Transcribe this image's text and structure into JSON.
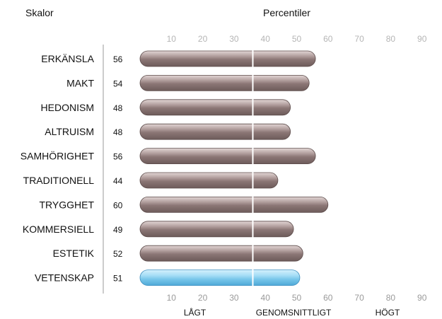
{
  "headers": {
    "scales": "Skalor",
    "percentiles": "Percentiler"
  },
  "chart_data": {
    "type": "bar",
    "orientation": "horizontal",
    "categories": [
      "ERKÄNSLA",
      "MAKT",
      "HEDONISM",
      "ALTRUISM",
      "SAMHÖRIGHET",
      "TRADITIONELL",
      "TRYGGHET",
      "KOMMERSIELL",
      "ESTETIK",
      "VETENSKAP"
    ],
    "values": [
      56,
      54,
      48,
      48,
      56,
      44,
      60,
      49,
      52,
      51
    ],
    "highlighted": "VETENSKAP",
    "xlim": [
      0,
      100
    ],
    "ticks": [
      10,
      20,
      30,
      40,
      50,
      60,
      70,
      80,
      90
    ],
    "ticks_top": true,
    "ticks_bottom": true,
    "reference_line": 36,
    "zone_labels": [
      "LÅGT",
      "GENOMSNITTLIGT",
      "HÖGT"
    ],
    "grid": false,
    "colors": {
      "bar": "#8b7675",
      "bar_highlight": "#8ccfee",
      "tick_top": "#b5b5b5",
      "tick_bottom": "#9a9a9a",
      "axis": "#999999",
      "reference_line": "#ffffff"
    }
  }
}
